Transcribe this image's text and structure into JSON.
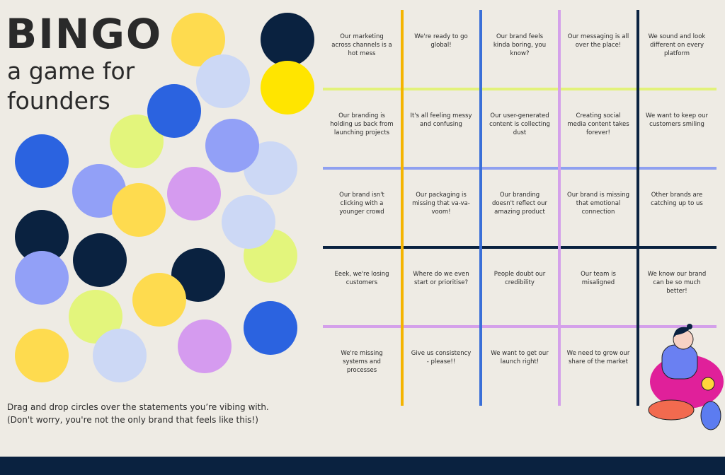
{
  "header": {
    "title": "BINGO",
    "subtitle": "a game for founders"
  },
  "instructions": [
    "Drag and drop circles over the statements you’re vibing with.",
    "(Don't worry, you're not the only brand that feels like this!)"
  ],
  "board": {
    "rows": [
      [
        "Our marketing across channels is a hot mess",
        "We're ready to go global!",
        "Our brand feels kinda boring, you know?",
        "Our messaging is all over the place!",
        "We sound and look different on every platform"
      ],
      [
        "Our branding is holding us back from launching projects",
        "It's all feeling messy and confusing",
        "Our user-generated content is collecting dust",
        "Creating social media content takes forever!",
        "We want to keep our customers smiling"
      ],
      [
        "Our brand isn't clicking with a younger crowd",
        "Our packaging is missing that va-va-voom!",
        "Our branding doesn't reflect our amazing product",
        "Our brand is missing that emotional connection",
        "Other brands are catching up to us"
      ],
      [
        "Eeek, we're losing customers",
        "Where do we even start or prioritise?",
        "People doubt our credibility",
        "Our team is misaligned",
        "We know our brand can be so much better!"
      ],
      [
        "We're missing systems and processes",
        "Give us consistency - please!!",
        "We want to get our launch right!",
        "We need to grow our share of the market",
        ""
      ]
    ]
  }
}
